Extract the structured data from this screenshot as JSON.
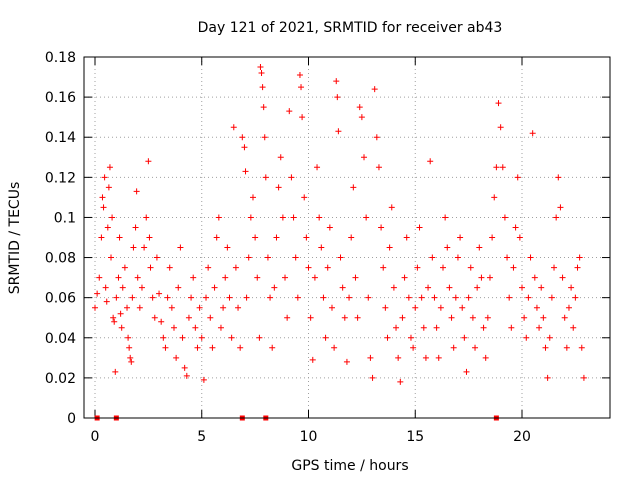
{
  "chart_data": {
    "type": "scatter",
    "title": "Day 121 of 2021, SRMTID for receiver ab43",
    "xlabel": "GPS time / hours",
    "ylabel": "SRMTID / TECUs",
    "xlim": [
      0,
      24.3
    ],
    "ylim": [
      0,
      0.18
    ],
    "x_ticks": [
      0,
      5,
      10,
      15,
      20
    ],
    "x_tick_labels": [
      "0",
      "5",
      "10",
      "15",
      "20"
    ],
    "y_ticks": [
      0,
      0.02,
      0.04,
      0.06,
      0.08,
      0.1,
      0.12,
      0.14,
      0.16,
      0.18
    ],
    "y_tick_labels": [
      "0",
      "0.02",
      "0.04",
      "0.06",
      "0.08",
      "0.1",
      "0.12",
      "0.14",
      "0.16",
      "0.18"
    ],
    "grid": true,
    "marker_color": "#ff0000",
    "series": [
      {
        "name": "SRMTID",
        "marker": "plus",
        "points": [
          [
            0.0,
            0.055
          ],
          [
            0.1,
            0.062
          ],
          [
            0.2,
            0.07
          ],
          [
            0.3,
            0.09
          ],
          [
            0.35,
            0.11
          ],
          [
            0.4,
            0.105
          ],
          [
            0.45,
            0.12
          ],
          [
            0.5,
            0.065
          ],
          [
            0.55,
            0.058
          ],
          [
            0.6,
            0.095
          ],
          [
            0.65,
            0.115
          ],
          [
            0.7,
            0.125
          ],
          [
            0.75,
            0.08
          ],
          [
            0.8,
            0.1
          ],
          [
            0.85,
            0.05
          ],
          [
            0.9,
            0.048
          ],
          [
            0.95,
            0.023
          ],
          [
            1.0,
            0.06
          ],
          [
            1.1,
            0.07
          ],
          [
            1.15,
            0.09
          ],
          [
            1.2,
            0.052
          ],
          [
            1.25,
            0.045
          ],
          [
            1.3,
            0.065
          ],
          [
            1.4,
            0.075
          ],
          [
            1.5,
            0.055
          ],
          [
            1.55,
            0.04
          ],
          [
            1.6,
            0.035
          ],
          [
            1.65,
            0.03
          ],
          [
            1.7,
            0.028
          ],
          [
            1.75,
            0.06
          ],
          [
            1.8,
            0.085
          ],
          [
            1.9,
            0.095
          ],
          [
            1.95,
            0.113
          ],
          [
            2.0,
            0.07
          ],
          [
            2.1,
            0.055
          ],
          [
            2.2,
            0.065
          ],
          [
            2.3,
            0.085
          ],
          [
            2.4,
            0.1
          ],
          [
            2.5,
            0.128
          ],
          [
            2.55,
            0.09
          ],
          [
            2.6,
            0.075
          ],
          [
            2.7,
            0.06
          ],
          [
            2.8,
            0.05
          ],
          [
            2.9,
            0.08
          ],
          [
            3.0,
            0.062
          ],
          [
            3.1,
            0.048
          ],
          [
            3.2,
            0.04
          ],
          [
            3.3,
            0.035
          ],
          [
            3.4,
            0.06
          ],
          [
            3.5,
            0.075
          ],
          [
            3.6,
            0.055
          ],
          [
            3.7,
            0.045
          ],
          [
            3.8,
            0.03
          ],
          [
            3.9,
            0.065
          ],
          [
            4.0,
            0.085
          ],
          [
            4.1,
            0.04
          ],
          [
            4.2,
            0.025
          ],
          [
            4.3,
            0.021
          ],
          [
            4.4,
            0.05
          ],
          [
            4.5,
            0.06
          ],
          [
            4.6,
            0.07
          ],
          [
            4.7,
            0.045
          ],
          [
            4.8,
            0.035
          ],
          [
            4.9,
            0.055
          ],
          [
            5.0,
            0.04
          ],
          [
            5.1,
            0.019
          ],
          [
            5.2,
            0.06
          ],
          [
            5.3,
            0.075
          ],
          [
            5.4,
            0.05
          ],
          [
            5.5,
            0.035
          ],
          [
            5.6,
            0.065
          ],
          [
            5.7,
            0.09
          ],
          [
            5.8,
            0.1
          ],
          [
            5.9,
            0.045
          ],
          [
            6.0,
            0.055
          ],
          [
            6.1,
            0.07
          ],
          [
            6.2,
            0.085
          ],
          [
            6.3,
            0.06
          ],
          [
            6.4,
            0.04
          ],
          [
            6.5,
            0.145
          ],
          [
            6.6,
            0.075
          ],
          [
            6.7,
            0.055
          ],
          [
            6.8,
            0.035
          ],
          [
            6.9,
            0.14
          ],
          [
            7.0,
            0.135
          ],
          [
            7.05,
            0.123
          ],
          [
            7.1,
            0.06
          ],
          [
            7.2,
            0.08
          ],
          [
            7.3,
            0.1
          ],
          [
            7.4,
            0.11
          ],
          [
            7.5,
            0.09
          ],
          [
            7.6,
            0.07
          ],
          [
            7.7,
            0.04
          ],
          [
            7.75,
            0.175
          ],
          [
            7.8,
            0.172
          ],
          [
            7.85,
            0.165
          ],
          [
            7.9,
            0.155
          ],
          [
            7.95,
            0.14
          ],
          [
            8.0,
            0.12
          ],
          [
            8.1,
            0.08
          ],
          [
            8.2,
            0.06
          ],
          [
            8.3,
            0.035
          ],
          [
            8.4,
            0.065
          ],
          [
            8.5,
            0.09
          ],
          [
            8.6,
            0.115
          ],
          [
            8.7,
            0.13
          ],
          [
            8.8,
            0.1
          ],
          [
            8.9,
            0.07
          ],
          [
            9.0,
            0.05
          ],
          [
            9.1,
            0.153
          ],
          [
            9.2,
            0.12
          ],
          [
            9.3,
            0.1
          ],
          [
            9.4,
            0.08
          ],
          [
            9.5,
            0.06
          ],
          [
            9.6,
            0.171
          ],
          [
            9.65,
            0.165
          ],
          [
            9.7,
            0.15
          ],
          [
            9.8,
            0.11
          ],
          [
            9.9,
            0.09
          ],
          [
            10.0,
            0.075
          ],
          [
            10.1,
            0.05
          ],
          [
            10.2,
            0.029
          ],
          [
            10.3,
            0.07
          ],
          [
            10.4,
            0.125
          ],
          [
            10.5,
            0.1
          ],
          [
            10.6,
            0.085
          ],
          [
            10.7,
            0.06
          ],
          [
            10.8,
            0.04
          ],
          [
            10.9,
            0.075
          ],
          [
            11.0,
            0.095
          ],
          [
            11.1,
            0.055
          ],
          [
            11.2,
            0.035
          ],
          [
            11.3,
            0.168
          ],
          [
            11.35,
            0.16
          ],
          [
            11.4,
            0.143
          ],
          [
            11.5,
            0.08
          ],
          [
            11.6,
            0.065
          ],
          [
            11.7,
            0.05
          ],
          [
            11.8,
            0.028
          ],
          [
            11.9,
            0.06
          ],
          [
            12.0,
            0.09
          ],
          [
            12.1,
            0.115
          ],
          [
            12.2,
            0.07
          ],
          [
            12.3,
            0.05
          ],
          [
            12.4,
            0.155
          ],
          [
            12.5,
            0.15
          ],
          [
            12.6,
            0.13
          ],
          [
            12.7,
            0.1
          ],
          [
            12.8,
            0.06
          ],
          [
            12.9,
            0.03
          ],
          [
            13.0,
            0.02
          ],
          [
            13.1,
            0.164
          ],
          [
            13.2,
            0.14
          ],
          [
            13.3,
            0.125
          ],
          [
            13.4,
            0.095
          ],
          [
            13.5,
            0.075
          ],
          [
            13.6,
            0.055
          ],
          [
            13.7,
            0.04
          ],
          [
            13.8,
            0.085
          ],
          [
            13.9,
            0.105
          ],
          [
            14.0,
            0.065
          ],
          [
            14.1,
            0.045
          ],
          [
            14.2,
            0.03
          ],
          [
            14.3,
            0.018
          ],
          [
            14.4,
            0.05
          ],
          [
            14.5,
            0.07
          ],
          [
            14.6,
            0.09
          ],
          [
            14.7,
            0.06
          ],
          [
            14.8,
            0.04
          ],
          [
            14.9,
            0.035
          ],
          [
            15.0,
            0.055
          ],
          [
            15.1,
            0.075
          ],
          [
            15.2,
            0.095
          ],
          [
            15.3,
            0.06
          ],
          [
            15.4,
            0.045
          ],
          [
            15.5,
            0.03
          ],
          [
            15.6,
            0.065
          ],
          [
            15.7,
            0.128
          ],
          [
            15.8,
            0.08
          ],
          [
            15.9,
            0.06
          ],
          [
            16.0,
            0.045
          ],
          [
            16.1,
            0.03
          ],
          [
            16.2,
            0.055
          ],
          [
            16.3,
            0.075
          ],
          [
            16.4,
            0.1
          ],
          [
            16.5,
            0.085
          ],
          [
            16.6,
            0.065
          ],
          [
            16.7,
            0.05
          ],
          [
            16.8,
            0.035
          ],
          [
            16.9,
            0.06
          ],
          [
            17.0,
            0.08
          ],
          [
            17.1,
            0.09
          ],
          [
            17.2,
            0.055
          ],
          [
            17.3,
            0.04
          ],
          [
            17.4,
            0.023
          ],
          [
            17.5,
            0.06
          ],
          [
            17.6,
            0.075
          ],
          [
            17.7,
            0.05
          ],
          [
            17.8,
            0.035
          ],
          [
            17.9,
            0.065
          ],
          [
            18.0,
            0.085
          ],
          [
            18.1,
            0.07
          ],
          [
            18.2,
            0.045
          ],
          [
            18.3,
            0.03
          ],
          [
            18.4,
            0.05
          ],
          [
            18.5,
            0.07
          ],
          [
            18.6,
            0.09
          ],
          [
            18.7,
            0.11
          ],
          [
            18.8,
            0.125
          ],
          [
            18.9,
            0.157
          ],
          [
            19.0,
            0.145
          ],
          [
            19.1,
            0.125
          ],
          [
            19.2,
            0.1
          ],
          [
            19.3,
            0.08
          ],
          [
            19.4,
            0.06
          ],
          [
            19.5,
            0.045
          ],
          [
            19.6,
            0.075
          ],
          [
            19.7,
            0.095
          ],
          [
            19.8,
            0.12
          ],
          [
            19.9,
            0.09
          ],
          [
            20.0,
            0.065
          ],
          [
            20.1,
            0.05
          ],
          [
            20.2,
            0.04
          ],
          [
            20.3,
            0.06
          ],
          [
            20.4,
            0.08
          ],
          [
            20.5,
            0.142
          ],
          [
            20.6,
            0.07
          ],
          [
            20.7,
            0.055
          ],
          [
            20.8,
            0.045
          ],
          [
            20.9,
            0.065
          ],
          [
            21.0,
            0.05
          ],
          [
            21.1,
            0.035
          ],
          [
            21.2,
            0.02
          ],
          [
            21.3,
            0.04
          ],
          [
            21.4,
            0.06
          ],
          [
            21.5,
            0.075
          ],
          [
            21.6,
            0.1
          ],
          [
            21.7,
            0.12
          ],
          [
            21.8,
            0.105
          ],
          [
            21.9,
            0.07
          ],
          [
            22.0,
            0.05
          ],
          [
            22.1,
            0.035
          ],
          [
            22.2,
            0.055
          ],
          [
            22.3,
            0.065
          ],
          [
            22.4,
            0.045
          ],
          [
            22.5,
            0.06
          ],
          [
            22.6,
            0.075
          ],
          [
            22.7,
            0.08
          ],
          [
            22.8,
            0.035
          ],
          [
            22.9,
            0.02
          ]
        ]
      },
      {
        "name": "zero-markers",
        "marker": "square",
        "points": [
          [
            0.1,
            0
          ],
          [
            1.0,
            0
          ],
          [
            6.9,
            0
          ],
          [
            8.0,
            0
          ],
          [
            18.8,
            0
          ]
        ]
      }
    ]
  }
}
